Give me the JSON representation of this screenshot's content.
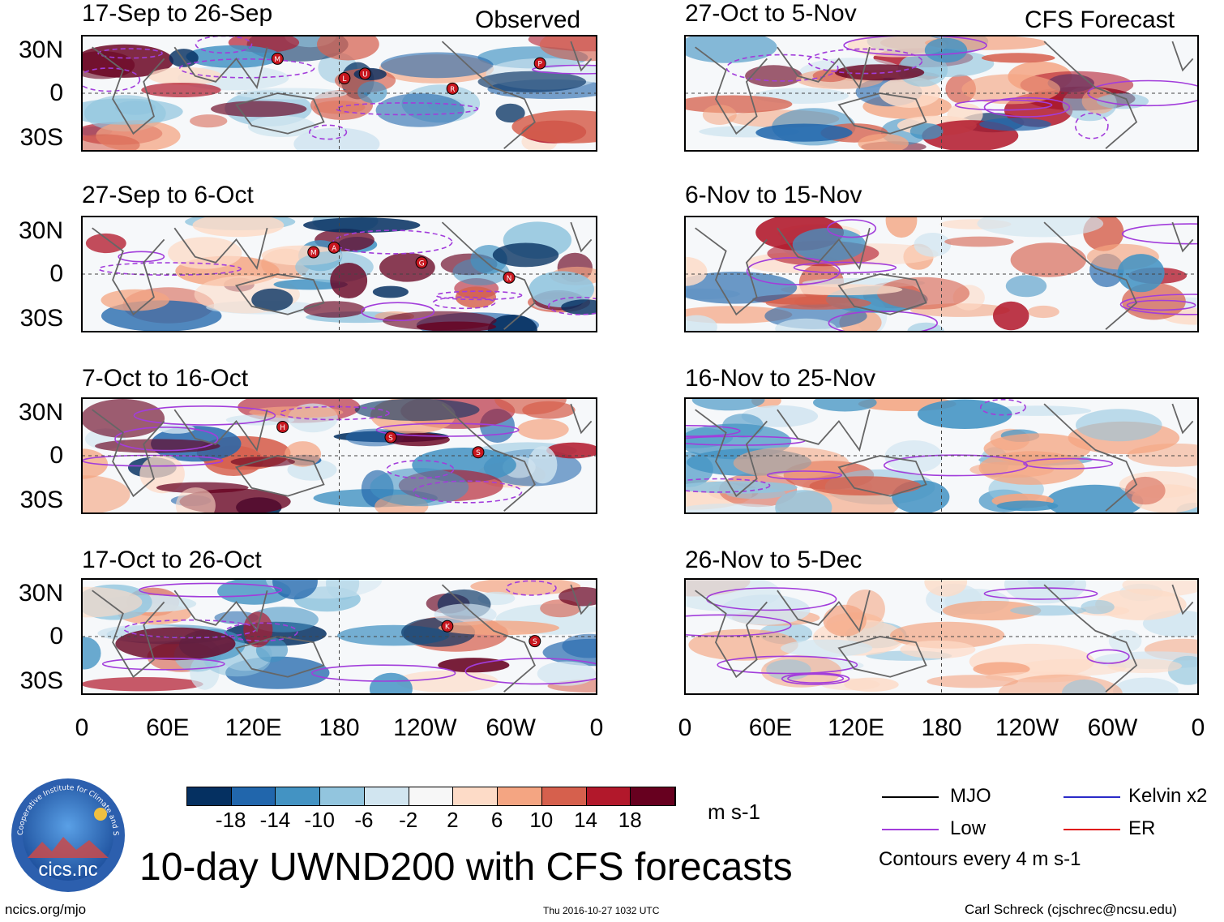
{
  "observed_label": "Observed",
  "forecast_label": "CFS Forecast",
  "panels_left": [
    {
      "title": "17-Sep to 26-Sep",
      "storms": [
        "M",
        "U",
        "R",
        "P",
        "L"
      ]
    },
    {
      "title": "27-Sep to 6-Oct",
      "storms": [
        "A",
        "G",
        "N",
        "M"
      ]
    },
    {
      "title": "7-Oct to 16-Oct",
      "storms": [
        "S",
        "S",
        "H"
      ]
    },
    {
      "title": "17-Oct to 26-Oct",
      "storms": [
        "K",
        "S"
      ]
    }
  ],
  "panels_right": [
    {
      "title": "27-Oct to 5-Nov"
    },
    {
      "title": "6-Nov to 15-Nov"
    },
    {
      "title": "16-Nov to 25-Nov"
    },
    {
      "title": "26-Nov to 5-Dec"
    }
  ],
  "y_ticks": [
    "30N",
    "0",
    "30S"
  ],
  "x_ticks": [
    "0",
    "60E",
    "120E",
    "180",
    "120W",
    "60W",
    "0"
  ],
  "colorbar": {
    "colors": [
      "#053061",
      "#2166ac",
      "#4393c3",
      "#92c5de",
      "#d1e5f0",
      "#f7f7f7",
      "#fddbc7",
      "#f4a582",
      "#d6604d",
      "#b2182b",
      "#67001f"
    ],
    "labels": [
      "-18",
      "-14",
      "-10",
      "-6",
      "-2",
      "2",
      "6",
      "10",
      "14",
      "18"
    ],
    "units": "m s-1"
  },
  "legend": {
    "mjo": "MJO",
    "mjo_color": "#000000",
    "kelvin": "Kelvin x2",
    "kelvin_color": "#2a2ac8",
    "low": "Low",
    "low_color": "#a23ddb",
    "er": "ER",
    "er_color": "#e01010",
    "contours": "Contours every 4 m s-1"
  },
  "logo_text": "cics.nc",
  "logo_ring_text": "Cooperative Institute for Climate and Satellites",
  "main_title": "10-day UWND200 with CFS forecasts",
  "footer_left": "ncics.org/mjo",
  "footer_center": "Thu 2016-10-27 1032 UTC",
  "footer_right": "Carl Schreck (cjschrec@ncsu.edu)"
}
